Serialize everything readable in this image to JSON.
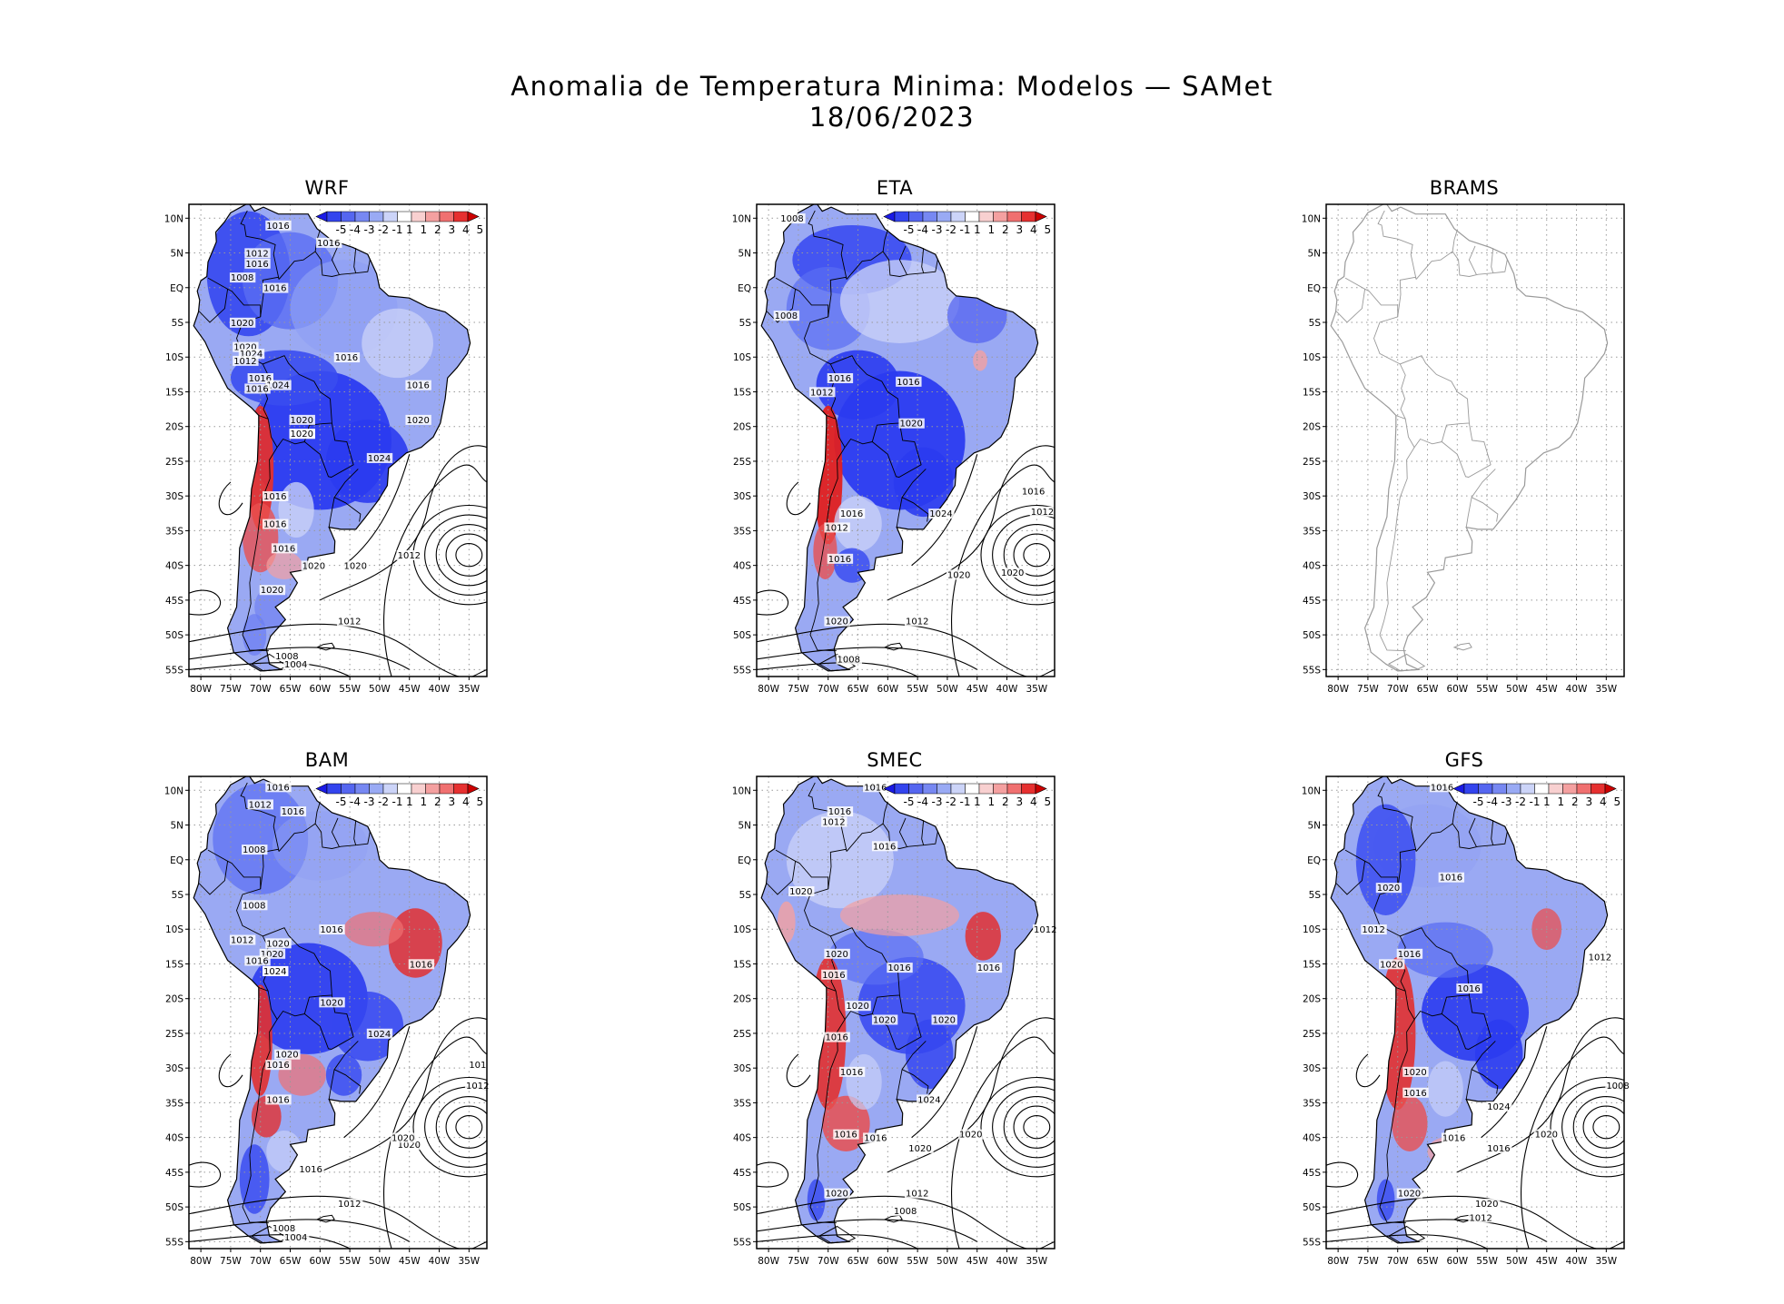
{
  "title": {
    "line1": "Anomalia de Temperatura Minima: Modelos — SAMet",
    "line2": "18/06/2023"
  },
  "axes": {
    "lat_labels": [
      "10N",
      "5N",
      "EQ",
      "5S",
      "10S",
      "15S",
      "20S",
      "25S",
      "30S",
      "35S",
      "40S",
      "45S",
      "50S",
      "55S"
    ],
    "lon_labels": [
      "80W",
      "75W",
      "70W",
      "65W",
      "60W",
      "55W",
      "50W",
      "45W",
      "40W",
      "35W"
    ]
  },
  "colorbar": {
    "ticks": [
      "-5",
      "-4",
      "-3",
      "-2",
      "-1",
      "1",
      "1",
      "2",
      "3",
      "4",
      "5"
    ],
    "colors": [
      "#1a1ae6",
      "#3344ee",
      "#5566f0",
      "#7788f2",
      "#99aaf4",
      "#ccd4f8",
      "#ffffff",
      "#f8d0d0",
      "#f4a0a0",
      "#f07070",
      "#e63030",
      "#cc0000"
    ]
  },
  "panels": [
    {
      "name": "WRF",
      "isobars": [
        "1016",
        "1016",
        "1012",
        "1016",
        "1008",
        "1016",
        "1020",
        "1020",
        "1024",
        "1012",
        "1016",
        "1024",
        "1016",
        "1016",
        "1020",
        "1020",
        "1020",
        "1024",
        "1016",
        "1020",
        "1016",
        "1016",
        "1020",
        "1016",
        "1012",
        "1020",
        "1020",
        "1012",
        "1008",
        "1004"
      ],
      "cold": "strong",
      "warm": "andes"
    },
    {
      "name": "ETA",
      "isobars": [
        "1008",
        "1008",
        "1016",
        "1012",
        "1016",
        "1020",
        "1016",
        "1012",
        "1024",
        "1016",
        "1016",
        "1012",
        "1020",
        "1020",
        "1020",
        "1012",
        "1008"
      ],
      "cold": "strong",
      "warm": "andes"
    },
    {
      "name": "BRAMS",
      "isobars": [],
      "cold": "none",
      "warm": "none"
    },
    {
      "name": "BAM",
      "isobars": [
        "1016",
        "1012",
        "1016",
        "1008",
        "1020",
        "1008",
        "1016",
        "1012",
        "1020",
        "1016",
        "1020",
        "1024",
        "1020",
        "1020",
        "1016",
        "1024",
        "1016",
        "1016",
        "1020",
        "1020",
        "1016",
        "1012",
        "1008",
        "1004",
        "101",
        "1012"
      ],
      "cold": "strong",
      "warm": "mixed"
    },
    {
      "name": "SMEC",
      "isobars": [
        "1016",
        "1016",
        "1012",
        "1016",
        "1020",
        "1020",
        "1016",
        "1020",
        "1020",
        "1020",
        "1016",
        "1016",
        "1016",
        "1024",
        "1016",
        "1016",
        "1016",
        "1012",
        "1020",
        "1020",
        "1020",
        "1012",
        "1008"
      ],
      "cold": "moderate",
      "warm": "andes"
    },
    {
      "name": "GFS",
      "isobars": [
        "1016",
        "1016",
        "1020",
        "1012",
        "1016",
        "1020",
        "1016",
        "1020",
        "1016",
        "1016",
        "1024",
        "1012",
        "1016",
        "1020",
        "1020",
        "1020",
        "1012",
        "1008"
      ],
      "cold": "moderate",
      "warm": "andes"
    }
  ]
}
